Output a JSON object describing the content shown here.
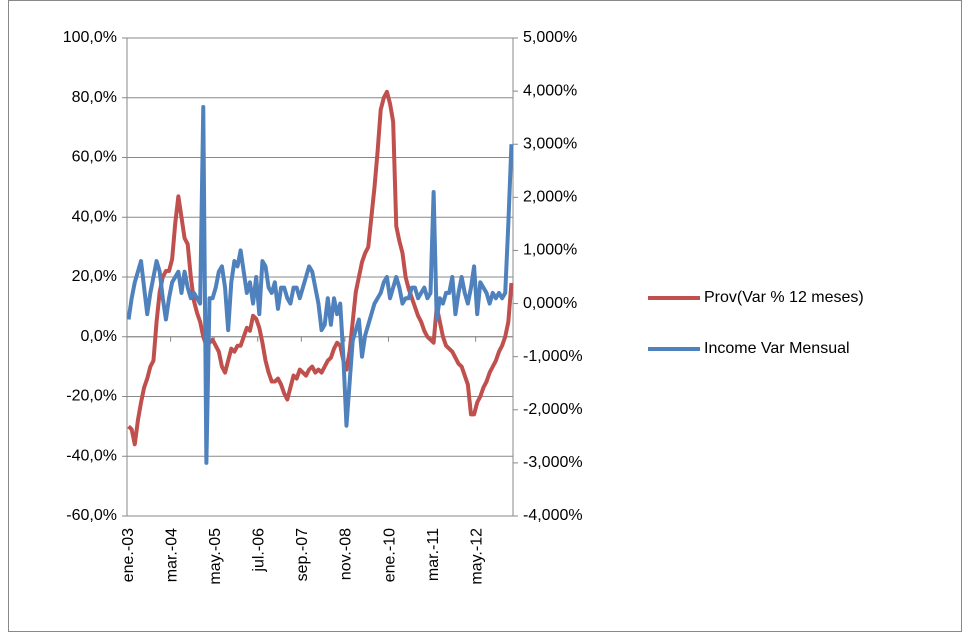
{
  "chart_data": {
    "type": "line",
    "categories": [
      "ene.-03",
      null,
      null,
      null,
      null,
      null,
      null,
      null,
      null,
      null,
      null,
      null,
      null,
      null,
      "mar.-04",
      null,
      null,
      null,
      null,
      null,
      null,
      null,
      null,
      null,
      null,
      null,
      null,
      null,
      "may.-05",
      null,
      null,
      null,
      null,
      null,
      null,
      null,
      null,
      null,
      null,
      null,
      null,
      null,
      "jul.-06",
      null,
      null,
      null,
      null,
      null,
      null,
      null,
      null,
      null,
      null,
      null,
      null,
      null,
      "sep.-07",
      null,
      null,
      null,
      null,
      null,
      null,
      null,
      null,
      null,
      null,
      null,
      null,
      null,
      "nov.-08",
      null,
      null,
      null,
      null,
      null,
      null,
      null,
      null,
      null,
      null,
      null,
      null,
      null,
      "ene.-10",
      null,
      null,
      null,
      null,
      null,
      null,
      null,
      null,
      null,
      null,
      null,
      null,
      null,
      "mar.-11",
      null,
      null,
      null,
      null,
      null,
      null,
      null,
      null,
      null,
      null,
      null,
      null,
      null,
      "may.-12",
      null,
      null,
      null,
      null,
      null,
      null,
      null,
      null,
      null,
      null,
      null
    ],
    "series": [
      {
        "name": "Prov(Var % 12 meses)",
        "color": "#c0504d",
        "values": [
          -30,
          -31,
          -36,
          -28,
          -22,
          -17,
          -14,
          -10,
          -8,
          5,
          15,
          20,
          22,
          22,
          26,
          38,
          47,
          40,
          33,
          31,
          20,
          12,
          8,
          5,
          0,
          -3,
          -2,
          -1,
          -3,
          -5,
          -10,
          -12,
          -8,
          -4,
          -5,
          -3,
          -3,
          0,
          3,
          2,
          7,
          6,
          3,
          -2,
          -8,
          -12,
          -15,
          -15,
          -14,
          -16,
          -19,
          -21,
          -17,
          -13,
          -14,
          -11,
          -12,
          -13,
          -11,
          -10,
          -12,
          -11,
          -12,
          -10,
          -8,
          -7,
          -4,
          -2,
          -3,
          -8,
          -11,
          -5,
          5,
          15,
          20,
          25,
          28,
          30,
          40,
          50,
          62,
          76,
          80,
          82,
          78,
          72,
          37,
          32,
          28,
          20,
          16,
          13,
          10,
          7,
          5,
          2,
          0,
          -1,
          -2,
          10,
          5,
          0,
          -3,
          -4,
          -5,
          -7,
          -9,
          -10,
          -13,
          -16,
          -26,
          -26,
          -22,
          -20,
          -17,
          -15,
          -12,
          -10,
          -8,
          -5,
          -3,
          0,
          5,
          18
        ]
      },
      {
        "name": "Income Var Mensual",
        "color": "#4f81bd",
        "axis": "y2",
        "values": [
          -0.3,
          0.1,
          0.4,
          0.6,
          0.8,
          0.3,
          -0.2,
          0.2,
          0.5,
          0.8,
          0.6,
          0.1,
          -0.3,
          0.1,
          0.4,
          0.5,
          0.6,
          0.2,
          0.6,
          0.3,
          0.1,
          0.2,
          0.1,
          0.0,
          3.7,
          -3.0,
          0.1,
          0.1,
          0.3,
          0.6,
          0.7,
          0.3,
          -0.5,
          0.4,
          0.8,
          0.7,
          1.0,
          0.6,
          0.2,
          0.4,
          0.0,
          0.5,
          -0.2,
          0.8,
          0.7,
          0.3,
          0.2,
          0.4,
          -0.1,
          0.3,
          0.3,
          0.1,
          0.0,
          0.3,
          0.3,
          0.1,
          0.3,
          0.5,
          0.7,
          0.6,
          0.3,
          0.0,
          -0.5,
          -0.4,
          0.1,
          -0.4,
          0.1,
          -0.2,
          0.0,
          -1.0,
          -2.3,
          -1.5,
          -0.7,
          -0.5,
          -0.3,
          -1.0,
          -0.6,
          -0.4,
          -0.2,
          0.0,
          0.1,
          0.2,
          0.4,
          0.5,
          0.1,
          0.3,
          0.5,
          0.3,
          0.0,
          0.1,
          0.1,
          0.3,
          0.3,
          0.1,
          0.2,
          0.3,
          0.1,
          0.2,
          2.1,
          -0.3,
          0.1,
          0.0,
          0.2,
          0.2,
          0.5,
          -0.2,
          0.2,
          0.5,
          0.2,
          0.0,
          0.3,
          0.7,
          -0.2,
          0.4,
          0.3,
          0.2,
          0.0,
          0.2,
          0.1,
          0.2,
          0.1,
          0.2,
          1.5,
          3.0
        ]
      }
    ],
    "ylim": [
      -60,
      100
    ],
    "yticks": [
      {
        "value": -60,
        "label": "-60,0%"
      },
      {
        "value": -40,
        "label": "-40,0%"
      },
      {
        "value": -20,
        "label": "-20,0%"
      },
      {
        "value": 0,
        "label": "0,0%"
      },
      {
        "value": 20,
        "label": "20,0%"
      },
      {
        "value": 40,
        "label": "40,0%"
      },
      {
        "value": 60,
        "label": "60,0%"
      },
      {
        "value": 80,
        "label": "80,0%"
      },
      {
        "value": 100,
        "label": "100,0%"
      }
    ],
    "y2lim": [
      -4,
      5
    ],
    "y2ticks": [
      {
        "value": -4,
        "label": "-4,000%"
      },
      {
        "value": -3,
        "label": "-3,000%"
      },
      {
        "value": -2,
        "label": "-2,000%"
      },
      {
        "value": -1,
        "label": "-1,000%"
      },
      {
        "value": 0,
        "label": "0,000%"
      },
      {
        "value": 1,
        "label": "1,000%"
      },
      {
        "value": 2,
        "label": "2,000%"
      },
      {
        "value": 3,
        "label": "3,000%"
      },
      {
        "value": 4,
        "label": "4,000%"
      },
      {
        "value": 5,
        "label": "5,000%"
      }
    ],
    "grid": true,
    "legend": "right"
  }
}
